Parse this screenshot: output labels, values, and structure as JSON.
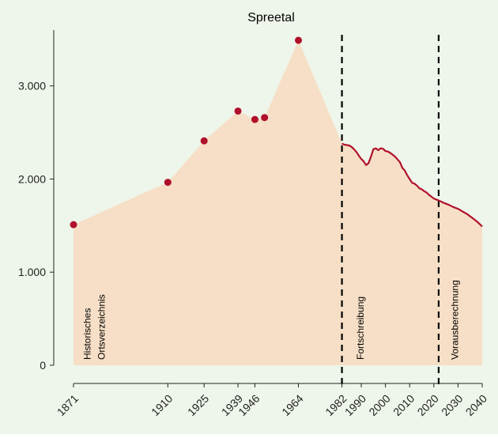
{
  "colors": {
    "background": "#eef5ea",
    "area_fill": "#f6dfc6",
    "line": "#b0102c",
    "point": "#b0102c",
    "axis": "#222222",
    "divider": "#000000"
  },
  "chart_data": {
    "type": "area",
    "title": "Spreetal",
    "xlabel": "",
    "ylabel": "",
    "xlim": [
      1871,
      2040
    ],
    "ylim": [
      0,
      3600
    ],
    "grid": false,
    "y_ticks": [
      0,
      1000,
      2000,
      3000
    ],
    "y_tick_labels": [
      "0",
      "1.000",
      "2.000",
      "3.000"
    ],
    "x_ticks": [
      1871,
      1910,
      1925,
      1939,
      1946,
      1964,
      1982,
      1990,
      2000,
      2010,
      2020,
      2030,
      2040
    ],
    "x_tick_labels": [
      "1871",
      "1910",
      "1925",
      "1939",
      "1946",
      "1964",
      "1982",
      "1990",
      "2000",
      "2010",
      "2020",
      "2030",
      "2040"
    ],
    "historical_points": [
      {
        "x": 1871,
        "y": 1510
      },
      {
        "x": 1910,
        "y": 1965
      },
      {
        "x": 1925,
        "y": 2410
      },
      {
        "x": 1939,
        "y": 2730
      },
      {
        "x": 1946,
        "y": 2640
      },
      {
        "x": 1950,
        "y": 2660
      },
      {
        "x": 1964,
        "y": 3490
      }
    ],
    "series": [
      {
        "values_xy": [
          [
            1982,
            2380
          ],
          [
            1983,
            2370
          ],
          [
            1984,
            2365
          ],
          [
            1985,
            2360
          ],
          [
            1986,
            2345
          ],
          [
            1987,
            2320
          ],
          [
            1988,
            2290
          ],
          [
            1989,
            2250
          ],
          [
            1990,
            2215
          ],
          [
            1991,
            2190
          ],
          [
            1992,
            2150
          ],
          [
            1993,
            2170
          ],
          [
            1994,
            2240
          ],
          [
            1995,
            2320
          ],
          [
            1996,
            2330
          ],
          [
            1997,
            2310
          ],
          [
            1998,
            2330
          ],
          [
            1999,
            2325
          ],
          [
            2000,
            2300
          ],
          [
            2001,
            2295
          ],
          [
            2002,
            2280
          ],
          [
            2003,
            2260
          ],
          [
            2004,
            2240
          ],
          [
            2005,
            2210
          ],
          [
            2006,
            2180
          ],
          [
            2007,
            2120
          ],
          [
            2008,
            2090
          ],
          [
            2009,
            2040
          ],
          [
            2010,
            2000
          ],
          [
            2011,
            1960
          ],
          [
            2012,
            1950
          ],
          [
            2013,
            1930
          ],
          [
            2014,
            1900
          ],
          [
            2015,
            1890
          ],
          [
            2016,
            1870
          ],
          [
            2017,
            1855
          ],
          [
            2018,
            1830
          ],
          [
            2019,
            1810
          ],
          [
            2020,
            1790
          ]
        ]
      },
      {
        "values_xy": [
          [
            2020,
            1790
          ],
          [
            2022,
            1770
          ],
          [
            2024,
            1745
          ],
          [
            2026,
            1725
          ],
          [
            2028,
            1700
          ],
          [
            2030,
            1680
          ],
          [
            2032,
            1650
          ],
          [
            2034,
            1620
          ],
          [
            2036,
            1580
          ],
          [
            2038,
            1540
          ],
          [
            2040,
            1490
          ]
        ]
      }
    ],
    "dividers": [
      1982,
      2022
    ],
    "annotations": [
      {
        "x": 1881,
        "text": "Historisches\nOrtsverzeichnis"
      },
      {
        "x": 1991,
        "text": "Fortschreibung"
      },
      {
        "x": 2030,
        "text": "Vorausberechnung"
      }
    ]
  }
}
